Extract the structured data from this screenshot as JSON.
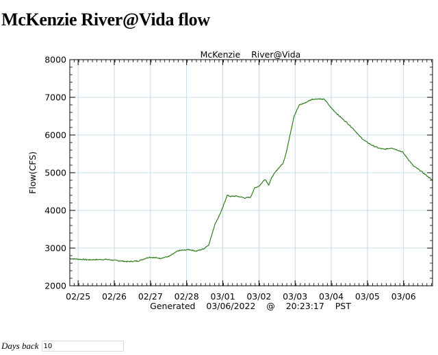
{
  "page": {
    "title": "McKenzie River@Vida flow",
    "days_back_label": "Days back",
    "days_back_value": "10"
  },
  "colors": {
    "line": "#2e7d1a",
    "grid": "#b8d4e6",
    "axis": "#000000"
  },
  "chart_data": {
    "type": "line",
    "title": "McKenzie    River@Vida",
    "xlabel": "Generated    03/06/2022    @    20:23:17    PST",
    "ylabel": "Flow(CFS)",
    "ylim": [
      2000,
      8000
    ],
    "yticks": [
      2000,
      3000,
      4000,
      5000,
      6000,
      7000,
      8000
    ],
    "xlim": [
      0,
      10.03
    ],
    "xtick_labels": [
      "02/25",
      "02/26",
      "02/27",
      "02/28",
      "03/01",
      "03/02",
      "03/03",
      "03/04",
      "03/05",
      "03/06"
    ],
    "grid": true,
    "series": [
      {
        "name": "Flow",
        "x": [
          0,
          0.5,
          1,
          1.4,
          1.6,
          1.9,
          2.1,
          2.2,
          2.5,
          2.75,
          3.0,
          3.3,
          3.5,
          3.7,
          3.85,
          4.0,
          4.2,
          4.35,
          4.45,
          4.6,
          4.75,
          4.85,
          5.0,
          5.1,
          5.25,
          5.4,
          5.5,
          5.6,
          5.75,
          5.9,
          6.0,
          6.2,
          6.35,
          6.5,
          6.7,
          6.9,
          7.05,
          7.2,
          7.4,
          7.55,
          7.65,
          7.8,
          7.9,
          8.0,
          8.15,
          8.35,
          8.55,
          8.7,
          8.9,
          9.2,
          9.5,
          9.7,
          10.03
        ],
        "values": [
          2720,
          2690,
          2700,
          2660,
          2640,
          2660,
          2730,
          2760,
          2730,
          2780,
          2930,
          2960,
          2920,
          2980,
          3100,
          3600,
          4000,
          4400,
          4370,
          4380,
          4350,
          4330,
          4350,
          4580,
          4660,
          4830,
          4680,
          4900,
          5100,
          5250,
          5600,
          6500,
          6800,
          6850,
          6950,
          6960,
          6940,
          6750,
          6550,
          6420,
          6340,
          6200,
          6100,
          5980,
          5850,
          5730,
          5650,
          5620,
          5660,
          5550,
          5180,
          5050,
          4800
        ]
      }
    ]
  }
}
